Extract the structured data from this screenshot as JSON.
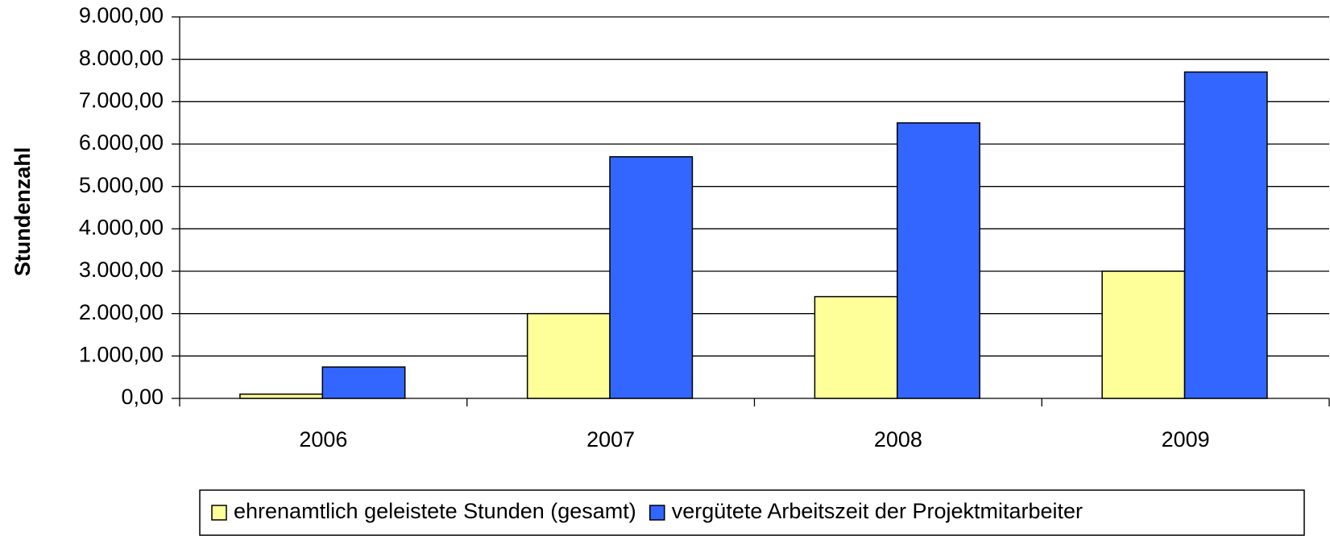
{
  "chart_data": {
    "type": "bar",
    "y_label": "Stundenzahl",
    "categories": [
      "2006",
      "2007",
      "2008",
      "2009"
    ],
    "series": [
      {
        "name": "ehrenamtlich geleistete Stunden (gesamt)",
        "color": "#ffff99",
        "values": [
          100,
          2000,
          2400,
          3000
        ]
      },
      {
        "name": "vergütete Arbeitszeit der Projektmitarbeiter",
        "color": "#3366ff",
        "values": [
          740,
          5700,
          6500,
          7700
        ]
      }
    ],
    "ylim": [
      0,
      9000
    ],
    "yticks": [
      {
        "value": 0,
        "label": "0,00"
      },
      {
        "value": 1000,
        "label": "1.000,00"
      },
      {
        "value": 2000,
        "label": "2.000,00"
      },
      {
        "value": 3000,
        "label": "3.000,00"
      },
      {
        "value": 4000,
        "label": "4.000,00"
      },
      {
        "value": 5000,
        "label": "5.000,00"
      },
      {
        "value": 6000,
        "label": "6.000,00"
      },
      {
        "value": 7000,
        "label": "7.000,00"
      },
      {
        "value": 8000,
        "label": "8.000,00"
      },
      {
        "value": 9000,
        "label": "9.000,00"
      }
    ],
    "grid": true,
    "legend": "bottom"
  }
}
